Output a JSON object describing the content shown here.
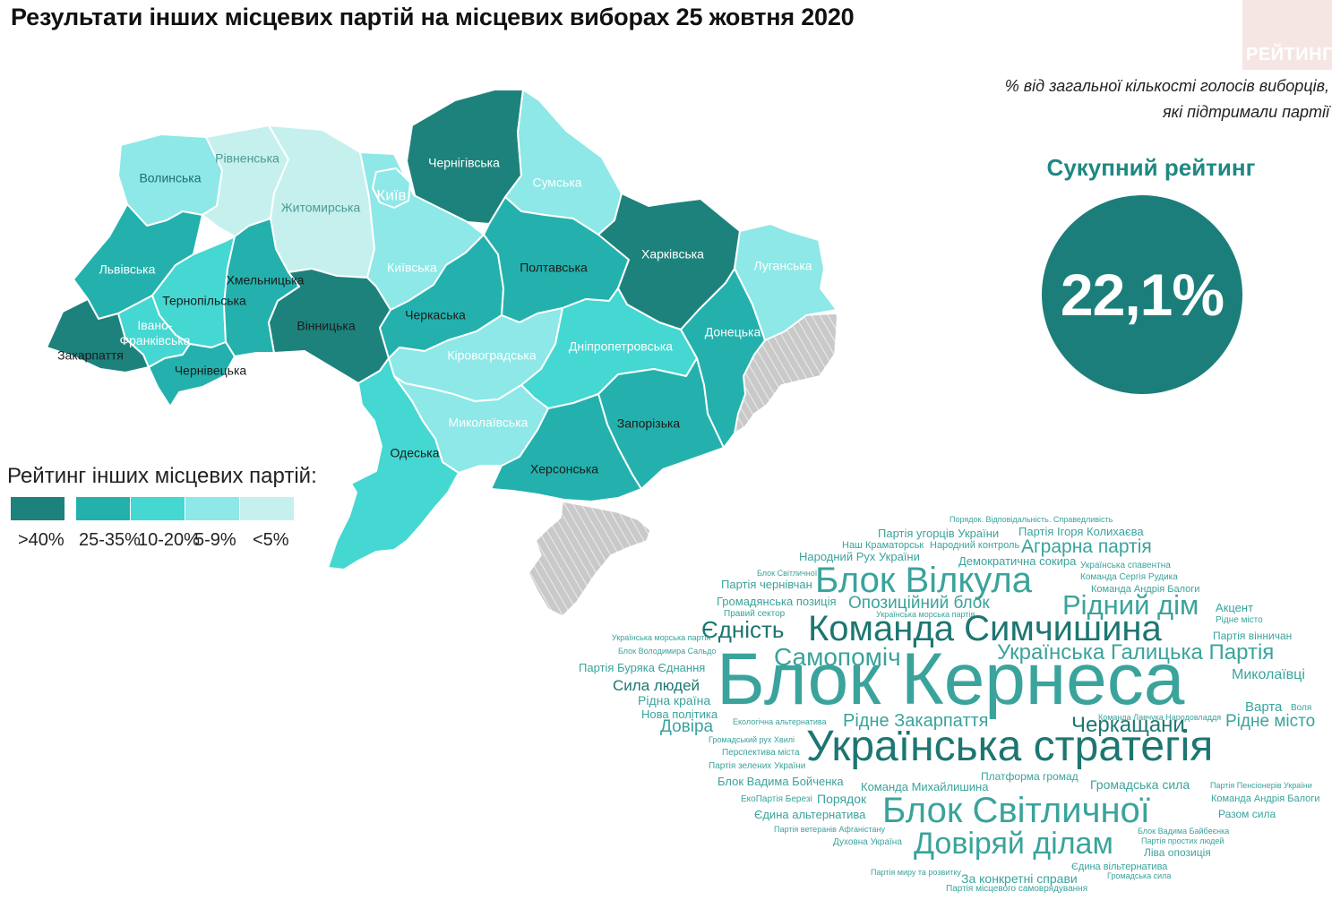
{
  "title": "Результати інших місцевих партій на місцевих виборах 25 жовтня 2020",
  "logo": "РЕЙТИНГ",
  "subtitle": {
    "line1": "% від загальної кількості голосів виборців,",
    "line2": "які підтримали партії"
  },
  "total": {
    "title": "Сукупний рейтинг",
    "value": "22,1%"
  },
  "legend": {
    "title": "Рейтинг інших місцевих партій:",
    "items": [
      {
        "label": ">40%",
        "color": "#1e827c"
      },
      {
        "label": "25-35%",
        "color": "#24b1ad"
      },
      {
        "label": "10-20%",
        "color": "#45d7d2"
      },
      {
        "label": "5-9%",
        "color": "#8de8e7"
      },
      {
        "label": "<5%",
        "color": "#c6f0ee"
      }
    ]
  },
  "colors": {
    "title": "#111111",
    "accent": "#1c7e7a",
    "accent_text": "#1f8882",
    "occupied": "#c9c9c9",
    "logo_bg": "#f6e6e3"
  },
  "map": {
    "regions": [
      {
        "id": "volynska",
        "name": "Волинська",
        "level": "5-9%",
        "color": "#8de8e7",
        "text_color": "#1f6f6c"
      },
      {
        "id": "rivnenska",
        "name": "Рівненська",
        "level": "<5%",
        "color": "#c6f0ee",
        "text_color": "#4a9a96"
      },
      {
        "id": "zhytomyrska",
        "name": "Житомирська",
        "level": "<5%",
        "color": "#c6f0ee",
        "text_color": "#4a9a96"
      },
      {
        "id": "chernihivska",
        "name": "Чернігівська",
        "level": ">40%",
        "color": "#1e827c",
        "text_color": "#ffffff"
      },
      {
        "id": "sumska",
        "name": "Сумська",
        "level": "5-9%",
        "color": "#8de8e7",
        "text_color": "#ffffff"
      },
      {
        "id": "kyiv",
        "name": "Київ",
        "level": "5-9%",
        "color": "#8de8e7",
        "text_color": "#ffffff"
      },
      {
        "id": "lvivska",
        "name": "Львівська",
        "level": "25-35%",
        "color": "#24b1ad",
        "text_color": "#ffffff"
      },
      {
        "id": "khmelnytska",
        "name": "Хмельницька",
        "level": "25-35%",
        "color": "#24b1ad",
        "text_color": "#1b1b1b"
      },
      {
        "id": "ternopilska",
        "name": "Тернопільська",
        "level": "10-20%",
        "color": "#45d7d2",
        "text_color": "#1b1b1b"
      },
      {
        "id": "kyivska",
        "name": "Київська",
        "level": "5-9%",
        "color": "#8de8e7",
        "text_color": "#ffffff"
      },
      {
        "id": "poltavska",
        "name": "Полтавська",
        "level": "25-35%",
        "color": "#24b1ad",
        "text_color": "#1b1b1b"
      },
      {
        "id": "kharkivska",
        "name": "Харківська",
        "level": ">40%",
        "color": "#1e827c",
        "text_color": "#ffffff"
      },
      {
        "id": "luhanska",
        "name": "Луганська",
        "level": "5-9%",
        "color": "#8de8e7",
        "text_color": "#ffffff"
      },
      {
        "id": "zakarpattia",
        "name": "Закарпаття",
        "level": ">40%",
        "color": "#1e827c",
        "text_color": "#1b1b1b"
      },
      {
        "id": "ivano_frankivska",
        "name": "Івано-Франківська",
        "level": "10-20%",
        "color": "#45d7d2",
        "text_color": "#ffffff"
      },
      {
        "id": "chernivetska",
        "name": "Чернівецька",
        "level": "25-35%",
        "color": "#24b1ad",
        "text_color": "#1b1b1b"
      },
      {
        "id": "vinnytska",
        "name": "Вінницька",
        "level": ">40%",
        "color": "#1e827c",
        "text_color": "#1b1b1b"
      },
      {
        "id": "cherkaska",
        "name": "Черкаська",
        "level": "25-35%",
        "color": "#24b1ad",
        "text_color": "#1b1b1b"
      },
      {
        "id": "kirovohradska",
        "name": "Кіровоградська",
        "level": "5-9%",
        "color": "#8de8e7",
        "text_color": "#ffffff"
      },
      {
        "id": "dnipropetrovska",
        "name": "Дніпропетровська",
        "level": "10-20%",
        "color": "#45d7d2",
        "text_color": "#ffffff"
      },
      {
        "id": "donetska",
        "name": "Донецька",
        "level": "25-35%",
        "color": "#24b1ad",
        "text_color": "#ffffff"
      },
      {
        "id": "mykolaivska",
        "name": "Миколаївська",
        "level": "5-9%",
        "color": "#8de8e7",
        "text_color": "#ffffff"
      },
      {
        "id": "zaporizka",
        "name": "Запорізька",
        "level": "25-35%",
        "color": "#24b1ad",
        "text_color": "#1b1b1b"
      },
      {
        "id": "odeska",
        "name": "Одеська",
        "level": "10-20%",
        "color": "#45d7d2",
        "text_color": "#1b1b1b"
      },
      {
        "id": "khersonska",
        "name": "Херсонська",
        "level": "25-35%",
        "color": "#24b1ad",
        "text_color": "#1b1b1b"
      }
    ],
    "label_lines": {
      "ivano_frankivska": [
        "Івано-",
        "Франківська"
      ]
    }
  },
  "wordcloud": [
    {
      "text": "Порядок. Відповідальність. Справедливість",
      "size": 9,
      "color": "#3aa39c",
      "w": 0
    },
    {
      "text": "Партія угорців України",
      "size": 13,
      "color": "#3aa39c",
      "w": 0
    },
    {
      "text": "Партія Ігоря Колихаєва",
      "size": 13,
      "color": "#3aa39c",
      "w": 0
    },
    {
      "text": "Наш Краматорськ",
      "size": 11,
      "color": "#3aa39c",
      "w": 0
    },
    {
      "text": "Народний контроль",
      "size": 11,
      "color": "#3aa39c",
      "w": 0
    },
    {
      "text": "Аграрна партія",
      "size": 21,
      "color": "#3aa39c",
      "w": 0
    },
    {
      "text": "Народний Рух України",
      "size": 13,
      "color": "#3aa39c",
      "w": 0
    },
    {
      "text": "Демократична сокира",
      "size": 13,
      "color": "#3aa39c",
      "w": 0
    },
    {
      "text": "Блок Вілкула",
      "size": 40,
      "color": "#3aa39c",
      "w": 0
    },
    {
      "text": "Українська спавентна",
      "size": 10,
      "color": "#3aa39c",
      "w": 0
    },
    {
      "text": "Блок Світличної",
      "size": 9,
      "color": "#3aa39c",
      "w": 0
    },
    {
      "text": "Команда Сергія Рудика",
      "size": 10,
      "color": "#3aa39c",
      "w": 0
    },
    {
      "text": "Партія чернівчан",
      "size": 13,
      "color": "#3aa39c",
      "w": 0
    },
    {
      "text": "Команда Андрія Балоги",
      "size": 11,
      "color": "#3aa39c",
      "w": 0
    },
    {
      "text": "Громадянська позиція",
      "size": 13,
      "color": "#3aa39c",
      "w": 0
    },
    {
      "text": "Опозиційний блок",
      "size": 19,
      "color": "#3aa39c",
      "w": 0
    },
    {
      "text": "Рідний дім",
      "size": 31,
      "color": "#3aa39c",
      "w": 0
    },
    {
      "text": "Акцент",
      "size": 13,
      "color": "#3aa39c",
      "w": 0
    },
    {
      "text": "Правий сектор",
      "size": 10,
      "color": "#3aa39c",
      "w": 0
    },
    {
      "text": "Українська морська партія",
      "size": 9,
      "color": "#3aa39c",
      "w": 0
    },
    {
      "text": "Рідне місто",
      "size": 10,
      "color": "#3aa39c",
      "w": 0
    },
    {
      "text": "Єдність",
      "size": 26,
      "color": "#1d7671",
      "w": 0
    },
    {
      "text": "Команда Симчишина",
      "size": 40,
      "color": "#1d7671",
      "w": 0
    },
    {
      "text": "Українська морська партія",
      "size": 9,
      "color": "#3aa39c",
      "w": 0
    },
    {
      "text": "Партія вінничан",
      "size": 12,
      "color": "#3aa39c",
      "w": 0
    },
    {
      "text": "Блок Володимира Сальдо",
      "size": 9,
      "color": "#3aa39c",
      "w": 0
    },
    {
      "text": "Самопоміч",
      "size": 28,
      "color": "#3aa39c",
      "w": 0
    },
    {
      "text": "Українська Галицька Партія",
      "size": 24,
      "color": "#3aa39c",
      "w": 0
    },
    {
      "text": "Партія Буряка Єднання",
      "size": 13,
      "color": "#3aa39c",
      "w": 0
    },
    {
      "text": "Блок Кернеса",
      "size": 82,
      "color": "#3aa39c",
      "w": 0
    },
    {
      "text": "Миколаївці",
      "size": 16,
      "color": "#3aa39c",
      "w": 0
    },
    {
      "text": "Сила людей",
      "size": 17,
      "color": "#1d7671",
      "w": 0
    },
    {
      "text": "Рідна країна",
      "size": 14,
      "color": "#3aa39c",
      "w": 0
    },
    {
      "text": "Варта",
      "size": 15,
      "color": "#3aa39c",
      "w": 0
    },
    {
      "text": "Воля",
      "size": 10,
      "color": "#3aa39c",
      "w": 0
    },
    {
      "text": "Нова політика",
      "size": 13,
      "color": "#3aa39c",
      "w": 0
    },
    {
      "text": "Рідне Закарпаття",
      "size": 20,
      "color": "#3aa39c",
      "w": 0
    },
    {
      "text": "Команда Лавчука Народовладдя",
      "size": 9,
      "color": "#3aa39c",
      "w": 0
    },
    {
      "text": "Рідне місто",
      "size": 19,
      "color": "#3aa39c",
      "w": 0
    },
    {
      "text": "Довіра",
      "size": 19,
      "color": "#3aa39c",
      "w": 0
    },
    {
      "text": "Екологічна альтернатива",
      "size": 9,
      "color": "#3aa39c",
      "w": 0
    },
    {
      "text": "Черкащани",
      "size": 24,
      "color": "#1d7671",
      "w": 0
    },
    {
      "text": "Громадський рух Хвилі",
      "size": 9,
      "color": "#3aa39c",
      "w": 0
    },
    {
      "text": "Українська стратегія",
      "size": 48,
      "color": "#1d7671",
      "w": 0
    },
    {
      "text": "Перспектива міста",
      "size": 10,
      "color": "#3aa39c",
      "w": 0
    },
    {
      "text": "Партія зелених України",
      "size": 10,
      "color": "#3aa39c",
      "w": 0
    },
    {
      "text": "Платформа громад",
      "size": 12,
      "color": "#3aa39c",
      "w": 0
    },
    {
      "text": "Блок Вадима Бойченка",
      "size": 13,
      "color": "#3aa39c",
      "w": 0
    },
    {
      "text": "Команда Михайлишина",
      "size": 13,
      "color": "#3aa39c",
      "w": 0
    },
    {
      "text": "Громадська сила",
      "size": 14,
      "color": "#3aa39c",
      "w": 0
    },
    {
      "text": "Партія Пенсіонерів України",
      "size": 9,
      "color": "#3aa39c",
      "w": 0
    },
    {
      "text": "ЕкоПартія Березі",
      "size": 10,
      "color": "#3aa39c",
      "w": 0
    },
    {
      "text": "Порядок",
      "size": 14,
      "color": "#3aa39c",
      "w": 0
    },
    {
      "text": "Блок Світличної",
      "size": 40,
      "color": "#3aa39c",
      "w": 0
    },
    {
      "text": "Команда Андрія Балоги",
      "size": 11,
      "color": "#3aa39c",
      "w": 0
    },
    {
      "text": "Єдина альтернатива",
      "size": 13,
      "color": "#3aa39c",
      "w": 0
    },
    {
      "text": "Разом сила",
      "size": 12,
      "color": "#3aa39c",
      "w": 0
    },
    {
      "text": "Партія ветеранів Афганістану",
      "size": 9,
      "color": "#3aa39c",
      "w": 0
    },
    {
      "text": "Блок Вадима Байбеєнка",
      "size": 9,
      "color": "#3aa39c",
      "w": 0
    },
    {
      "text": "Духовна Україна",
      "size": 10,
      "color": "#3aa39c",
      "w": 0
    },
    {
      "text": "Довіряй ділам",
      "size": 34,
      "color": "#3aa39c",
      "w": 0
    },
    {
      "text": "Партія простих людей",
      "size": 9,
      "color": "#3aa39c",
      "w": 0
    },
    {
      "text": "Ліва опозиція",
      "size": 12,
      "color": "#3aa39c",
      "w": 0
    },
    {
      "text": "Єдина вільтернатива",
      "size": 11,
      "color": "#3aa39c",
      "w": 0
    },
    {
      "text": "Партія миру та розвитку",
      "size": 9,
      "color": "#3aa39c",
      "w": 0
    },
    {
      "text": "За конкретні справи",
      "size": 14,
      "color": "#3aa39c",
      "w": 0
    },
    {
      "text": "Громадська сила",
      "size": 9,
      "color": "#3aa39c",
      "w": 0
    },
    {
      "text": "Партія місцевого самоврядування",
      "size": 10,
      "color": "#3aa39c",
      "w": 0
    }
  ]
}
